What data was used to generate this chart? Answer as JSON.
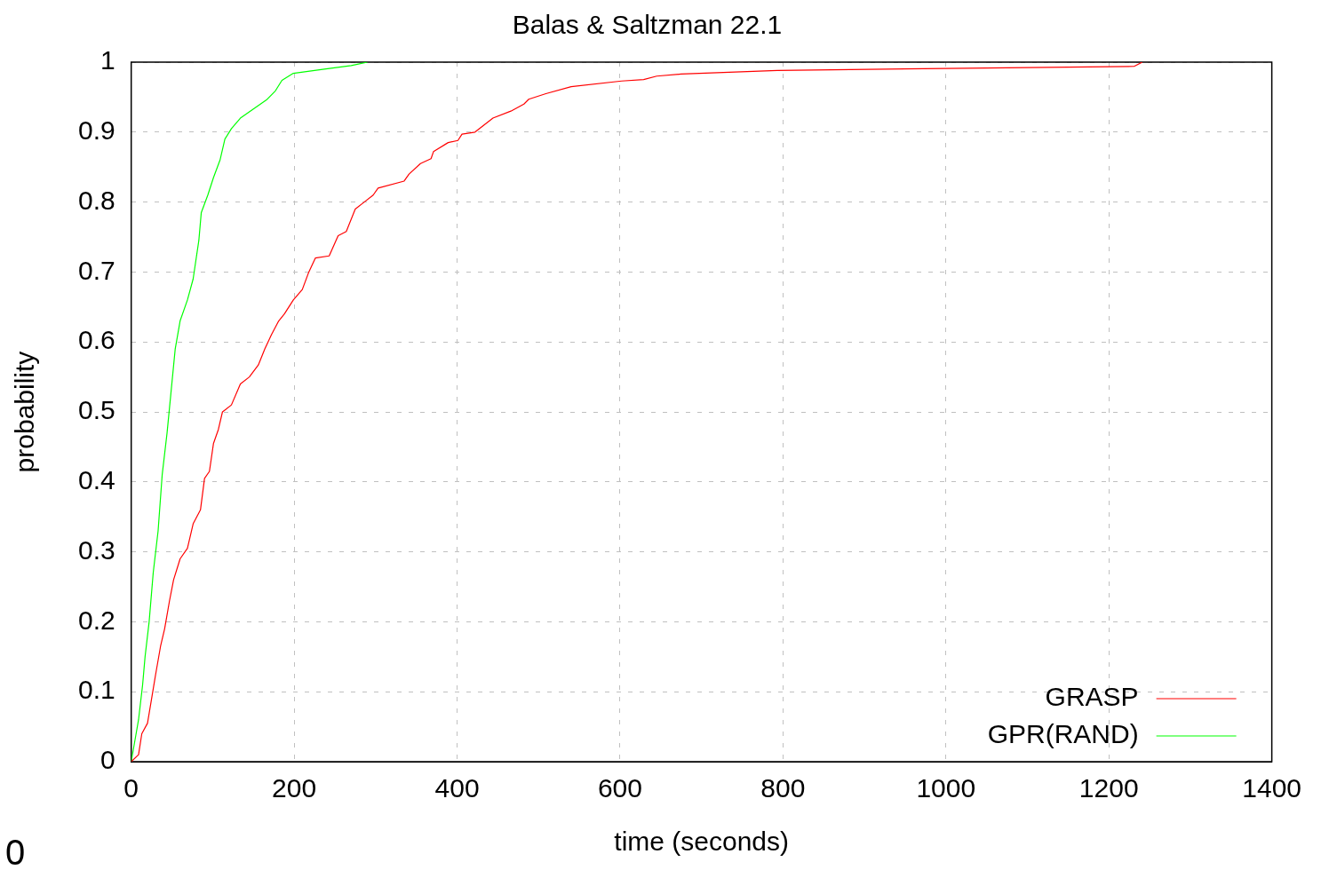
{
  "chart_data": {
    "type": "line",
    "title": "Balas & Saltzman 22.1",
    "xlabel": "time (seconds)",
    "ylabel": "probability",
    "annotations": [
      "0"
    ],
    "xlim": [
      0,
      1400
    ],
    "xticks": [
      0,
      200,
      400,
      600,
      800,
      1000,
      1200,
      1400
    ],
    "ylim": [
      0,
      1
    ],
    "yticks": [
      0,
      0.1,
      0.2,
      0.3,
      0.4,
      0.5,
      0.6,
      0.7,
      0.8,
      0.9,
      1
    ],
    "grid": true,
    "legend": "bottom right",
    "line_style": "solid",
    "marker": "none",
    "series": [
      {
        "name": "GRASP",
        "color": "#ff0000",
        "x": [
          0,
          9,
          13,
          20,
          25,
          30,
          36,
          41,
          47,
          52,
          60,
          69,
          76,
          85,
          90,
          96,
          101,
          107,
          112,
          123,
          134,
          145,
          156,
          164,
          172,
          181,
          188,
          199,
          210,
          218,
          226,
          243,
          254,
          264,
          275,
          286,
          297,
          303,
          335,
          341,
          355,
          368,
          371,
          389,
          401,
          406,
          422,
          444,
          466,
          482,
          488,
          509,
          540,
          602,
          629,
          645,
          675,
          793,
          999,
          1231,
          1241
        ],
        "values": [
          0,
          0.01,
          0.04,
          0.055,
          0.09,
          0.125,
          0.165,
          0.19,
          0.23,
          0.26,
          0.29,
          0.305,
          0.34,
          0.36,
          0.405,
          0.415,
          0.455,
          0.475,
          0.5,
          0.51,
          0.54,
          0.55,
          0.567,
          0.59,
          0.61,
          0.63,
          0.64,
          0.66,
          0.675,
          0.7,
          0.72,
          0.723,
          0.752,
          0.758,
          0.79,
          0.8,
          0.81,
          0.82,
          0.83,
          0.84,
          0.855,
          0.862,
          0.872,
          0.885,
          0.888,
          0.897,
          0.9,
          0.92,
          0.93,
          0.94,
          0.947,
          0.955,
          0.965,
          0.973,
          0.975,
          0.98,
          0.983,
          0.988,
          0.991,
          0.994,
          1
        ]
      },
      {
        "name": "GPR(RAND)",
        "color": "#00ff00",
        "x": [
          0,
          3,
          9,
          14,
          17,
          22,
          27,
          33,
          38,
          44,
          49,
          54,
          60,
          69,
          76,
          83,
          86,
          94,
          101,
          109,
          115,
          123,
          134,
          150,
          166,
          177,
          185,
          199,
          237,
          270,
          290
        ],
        "values": [
          0,
          0.02,
          0.06,
          0.11,
          0.15,
          0.2,
          0.27,
          0.33,
          0.41,
          0.47,
          0.53,
          0.59,
          0.63,
          0.66,
          0.69,
          0.745,
          0.785,
          0.81,
          0.835,
          0.86,
          0.89,
          0.905,
          0.92,
          0.933,
          0.946,
          0.959,
          0.974,
          0.984,
          0.99,
          0.995,
          1
        ]
      }
    ]
  }
}
